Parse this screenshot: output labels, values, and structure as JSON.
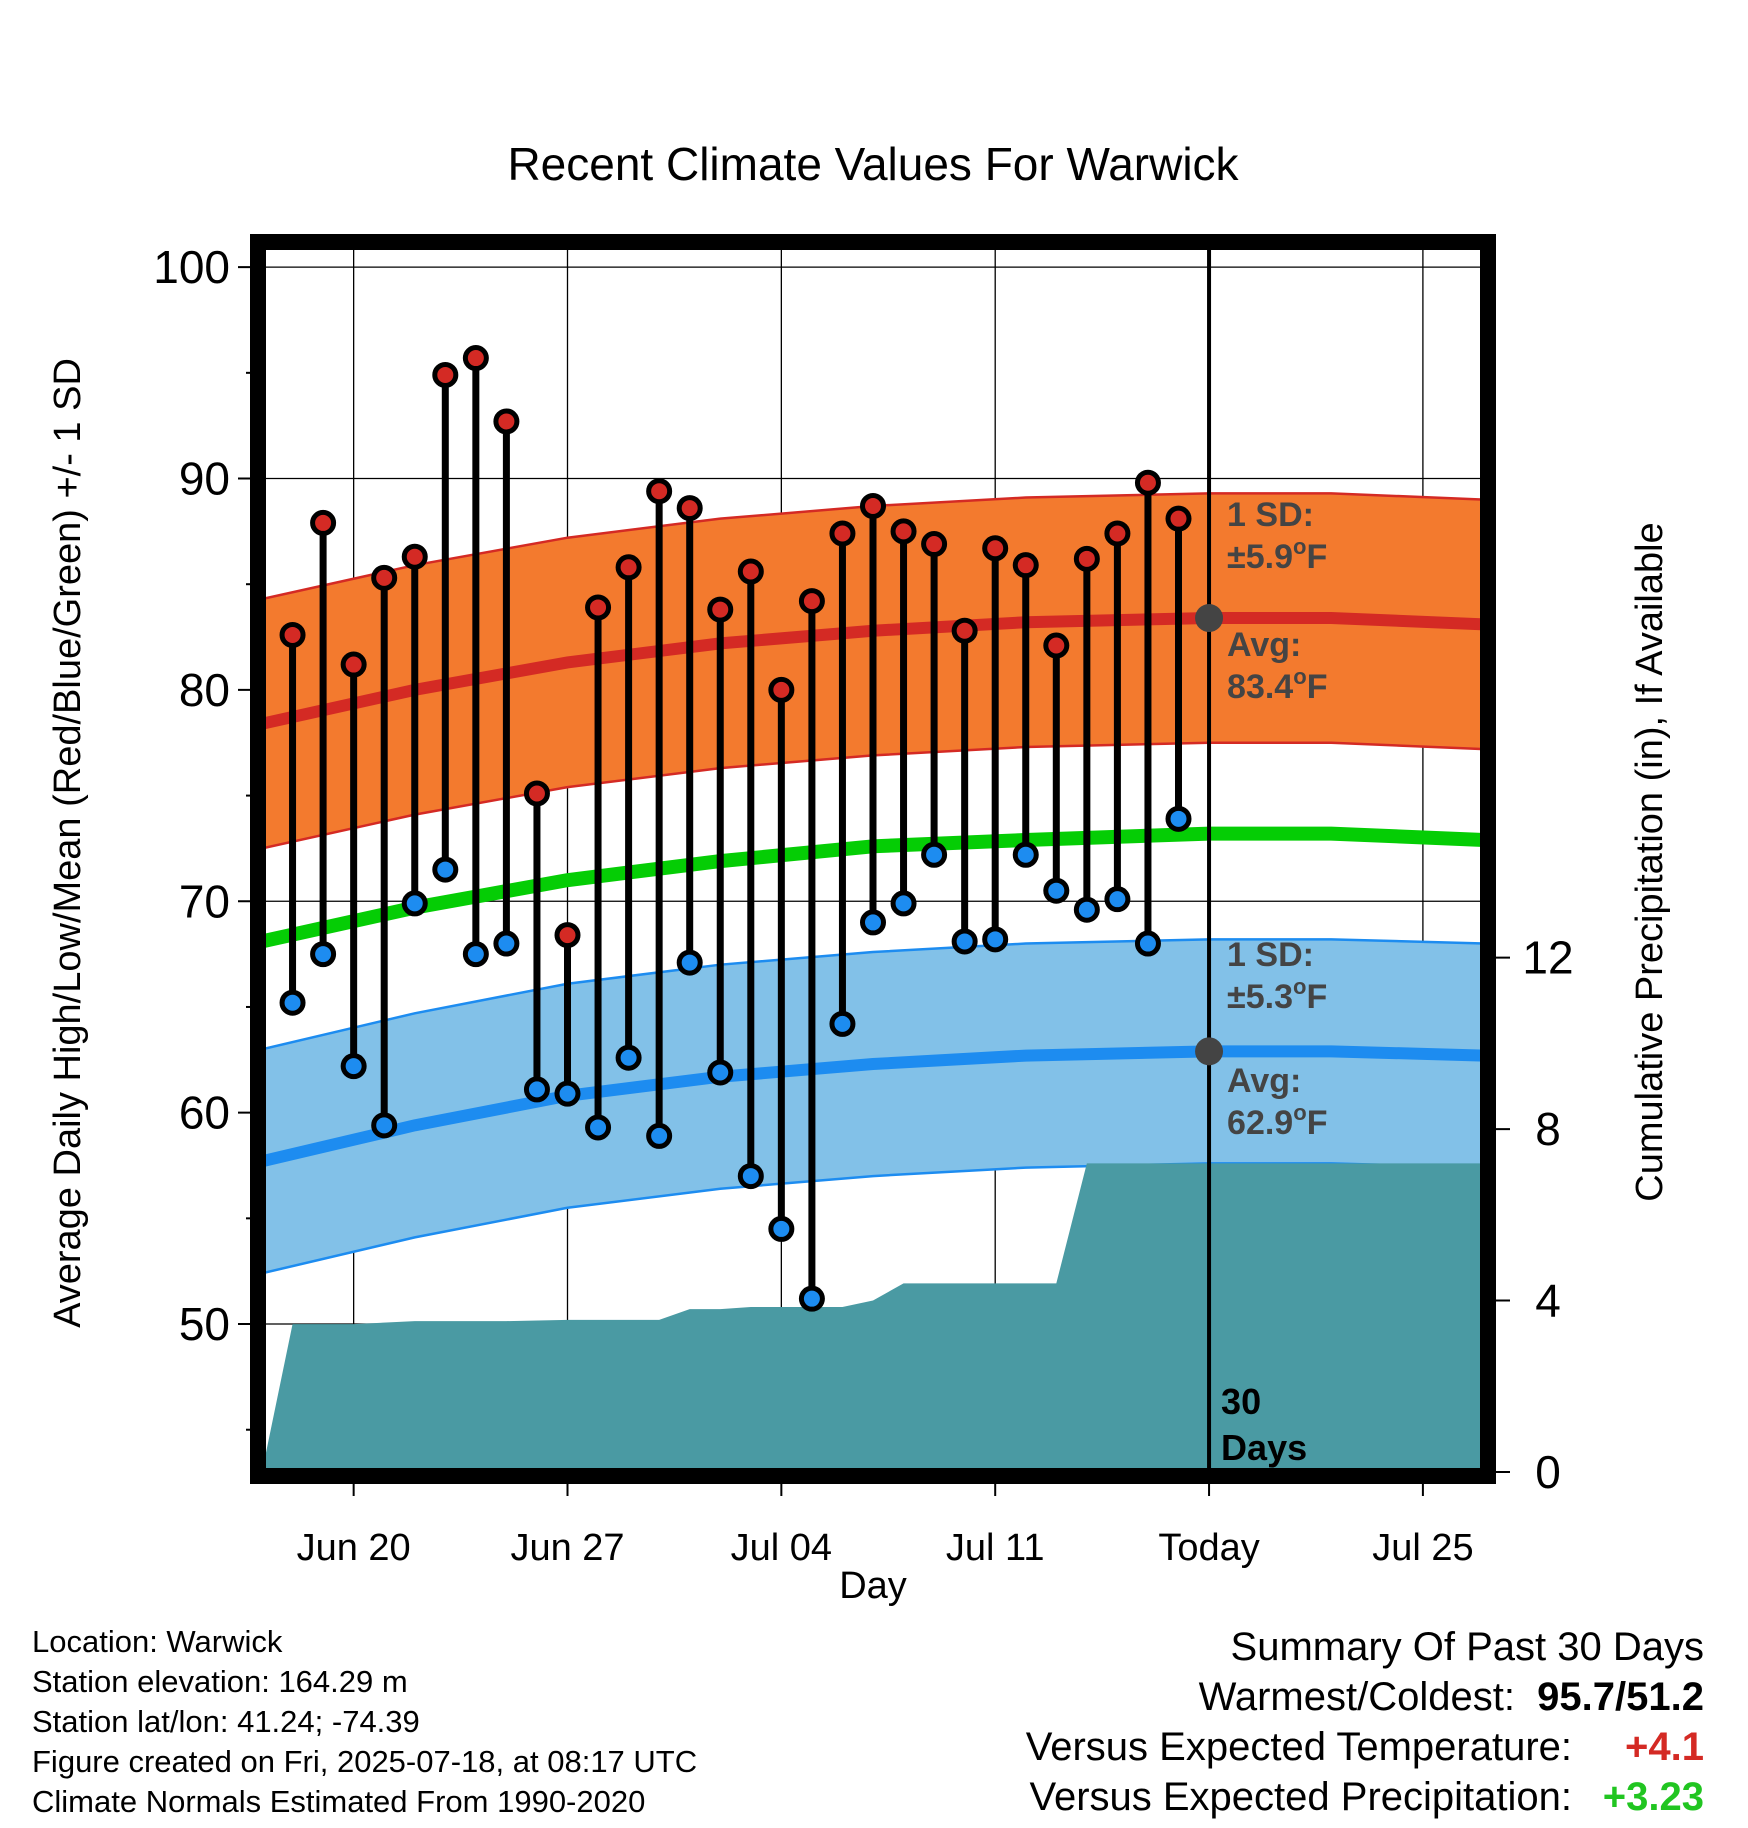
{
  "chart_data": {
    "type": "line",
    "title": "Recent Climate Values For Warwick",
    "xlabel": "Day",
    "ylabel": "Average Daily High/Low/Mean (Red/Blue/Green) +/- 1 SD",
    "y2label": "Cumulative Precipitation (in), If Available",
    "ylim": [
      43,
      101
    ],
    "y2lim": [
      0,
      28.6
    ],
    "yticks": [
      "50",
      "60",
      "70",
      "80",
      "90",
      "100"
    ],
    "y2ticks": [
      "0",
      "4",
      "8",
      "12"
    ],
    "xticks": [
      "Jun 20",
      "Jun 27",
      "Jul 04",
      "Jul 11",
      "Today",
      "Jul 25"
    ],
    "x_range": [
      "2025-06-17",
      "2025-07-27"
    ],
    "today": "2025-07-18",
    "grid": true,
    "daily": {
      "dates": [
        "2025-06-18",
        "2025-06-19",
        "2025-06-20",
        "2025-06-21",
        "2025-06-22",
        "2025-06-23",
        "2025-06-24",
        "2025-06-25",
        "2025-06-26",
        "2025-06-27",
        "2025-06-28",
        "2025-06-29",
        "2025-06-30",
        "2025-07-01",
        "2025-07-02",
        "2025-07-03",
        "2025-07-04",
        "2025-07-05",
        "2025-07-06",
        "2025-07-07",
        "2025-07-08",
        "2025-07-09",
        "2025-07-10",
        "2025-07-11",
        "2025-07-12",
        "2025-07-13",
        "2025-07-14",
        "2025-07-15",
        "2025-07-16",
        "2025-07-17"
      ],
      "high": [
        82.6,
        87.9,
        81.2,
        85.3,
        86.3,
        94.9,
        95.7,
        92.7,
        75.1,
        68.4,
        83.9,
        85.8,
        89.4,
        88.6,
        83.8,
        85.6,
        80.0,
        84.2,
        87.4,
        88.7,
        87.5,
        86.9,
        82.8,
        86.7,
        85.9,
        82.1,
        86.2,
        87.4,
        89.8,
        88.1
      ],
      "low": [
        65.2,
        67.5,
        62.2,
        59.4,
        69.9,
        71.5,
        67.5,
        68.0,
        61.1,
        60.9,
        59.3,
        62.6,
        58.9,
        67.1,
        61.9,
        57.0,
        54.5,
        51.2,
        64.2,
        69.0,
        69.9,
        72.2,
        68.1,
        68.2,
        72.2,
        70.5,
        69.6,
        70.1,
        68.0,
        73.9
      ]
    },
    "normals": {
      "x": [
        "2025-06-17",
        "2025-06-22",
        "2025-06-27",
        "2025-07-02",
        "2025-07-07",
        "2025-07-12",
        "2025-07-18",
        "2025-07-22",
        "2025-07-27"
      ],
      "high_avg": [
        78.4,
        80.0,
        81.3,
        82.2,
        82.8,
        83.2,
        83.4,
        83.4,
        83.1
      ],
      "low_avg": [
        57.7,
        59.4,
        60.8,
        61.7,
        62.3,
        62.7,
        62.9,
        62.9,
        62.7
      ],
      "mean_avg": [
        68.1,
        69.7,
        71.0,
        71.9,
        72.6,
        72.9,
        73.2,
        73.2,
        72.9
      ],
      "high_sd": 5.9,
      "low_sd": 5.3
    },
    "precip": {
      "x": [
        "2025-06-17",
        "2025-06-18",
        "2025-06-20",
        "2025-06-22",
        "2025-06-25",
        "2025-06-27",
        "2025-06-30",
        "2025-07-01",
        "2025-07-02",
        "2025-07-03",
        "2025-07-06",
        "2025-07-07",
        "2025-07-08",
        "2025-07-10",
        "2025-07-13",
        "2025-07-14",
        "2025-07-18",
        "2025-07-27"
      ],
      "cumulative": [
        0.0,
        3.45,
        3.45,
        3.52,
        3.52,
        3.55,
        3.55,
        3.8,
        3.8,
        3.85,
        3.85,
        4.0,
        4.4,
        4.4,
        4.4,
        7.2,
        7.2,
        7.2
      ]
    },
    "annotations": {
      "high_sd_label": "1 SD:",
      "high_sd_value": "±5.9",
      "high_avg_label": "Avg:",
      "high_avg_value": "83.4",
      "low_sd_label": "1 SD:",
      "low_sd_value": "±5.3",
      "low_avg_label": "Avg:",
      "low_avg_value": "62.9",
      "degree_symbol": "o",
      "unit": "F",
      "days_count": "30",
      "days_word": "Days"
    },
    "colors": {
      "high_band": "#f37a2e",
      "high_line": "#d42a24",
      "low_band": "#82c1e8",
      "low_line": "#1d8cf0",
      "mean_line": "#05cd05",
      "precip_fill": "#4a9aa3",
      "annotation_text": "#444444",
      "today_marker": "#444444"
    }
  },
  "info": {
    "location": "Location: Warwick",
    "elevation": "Station elevation: 164.29 m",
    "latlon": "Station lat/lon: 41.24; -74.39",
    "created": "Figure created on Fri, 2025-07-18, at 08:17 UTC",
    "normals": "Climate Normals Estimated From 1990-2020"
  },
  "summary": {
    "title": "Summary Of Past 30 Days",
    "warm_cold_label": "Warmest/Coldest:",
    "warm_cold_value": "95.7/51.2",
    "temp_label": "Versus Expected Temperature:",
    "temp_value": "+4.1",
    "temp_color": "#d42a24",
    "precip_label": "Versus Expected Precipitation:",
    "precip_value": "+3.23",
    "precip_color": "#21c521"
  }
}
